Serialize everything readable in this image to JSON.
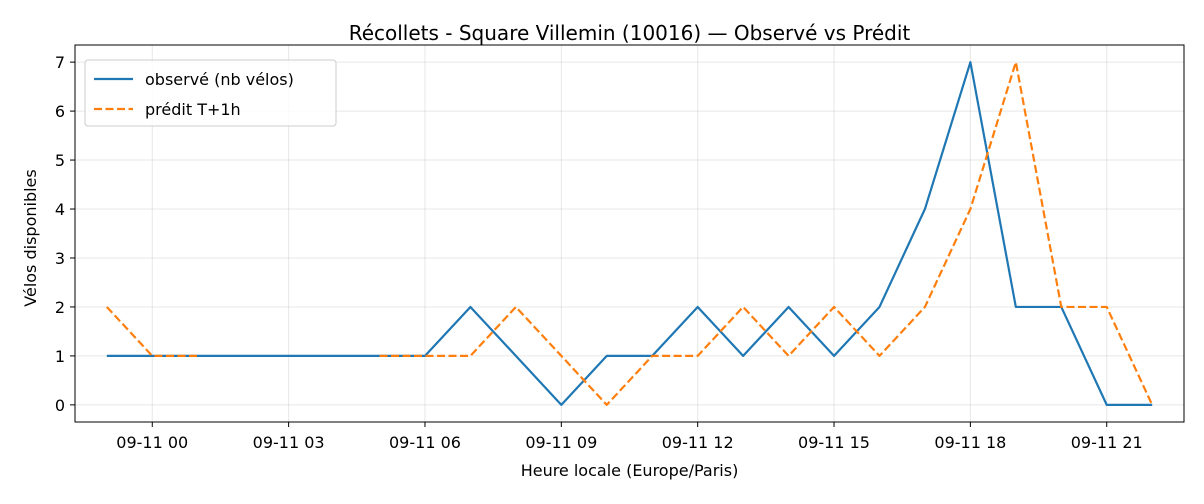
{
  "chart_data": {
    "type": "line",
    "title": "Récollets - Square Villemin (10016) — Observé vs Prédit",
    "xlabel": "Heure locale (Europe/Paris)",
    "ylabel": "Vélos disponibles",
    "x_tick_labels": [
      "09-11 00",
      "09-11 03",
      "09-11 06",
      "09-11 09",
      "09-11 12",
      "09-11 15",
      "09-11 18",
      "09-11 21"
    ],
    "y_ticks": [
      0,
      1,
      2,
      3,
      4,
      5,
      6,
      7
    ],
    "xlim": [
      "09-10 22:18",
      "09-11 22:42"
    ],
    "ylim": [
      -0.35,
      7.35
    ],
    "grid": true,
    "legend_position": "top-left",
    "x": [
      "09-10 23:00",
      "09-11 00:00",
      "09-11 01:00",
      "09-11 02:00",
      "09-11 03:00",
      "09-11 04:00",
      "09-11 05:00",
      "09-11 06:00",
      "09-11 07:00",
      "09-11 08:00",
      "09-11 09:00",
      "09-11 10:00",
      "09-11 11:00",
      "09-11 12:00",
      "09-11 13:00",
      "09-11 14:00",
      "09-11 15:00",
      "09-11 16:00",
      "09-11 17:00",
      "09-11 18:00",
      "09-11 19:00",
      "09-11 20:00",
      "09-11 21:00",
      "09-11 22:00"
    ],
    "series": [
      {
        "name": "observé (nb vélos)",
        "color": "#1f77b4",
        "style": "solid",
        "values": [
          1,
          1,
          1,
          1,
          1,
          1,
          1,
          1,
          2,
          1,
          0,
          1,
          1,
          2,
          1,
          2,
          1,
          2,
          4,
          7,
          2,
          2,
          0,
          0
        ]
      },
      {
        "name": "prédit T+1h",
        "color": "#ff7f0e",
        "style": "dashed",
        "values": [
          2,
          1,
          1,
          null,
          null,
          null,
          1,
          1,
          1,
          2,
          1,
          0,
          1,
          1,
          2,
          1,
          2,
          1,
          2,
          4,
          7,
          2,
          2,
          0
        ]
      }
    ]
  }
}
